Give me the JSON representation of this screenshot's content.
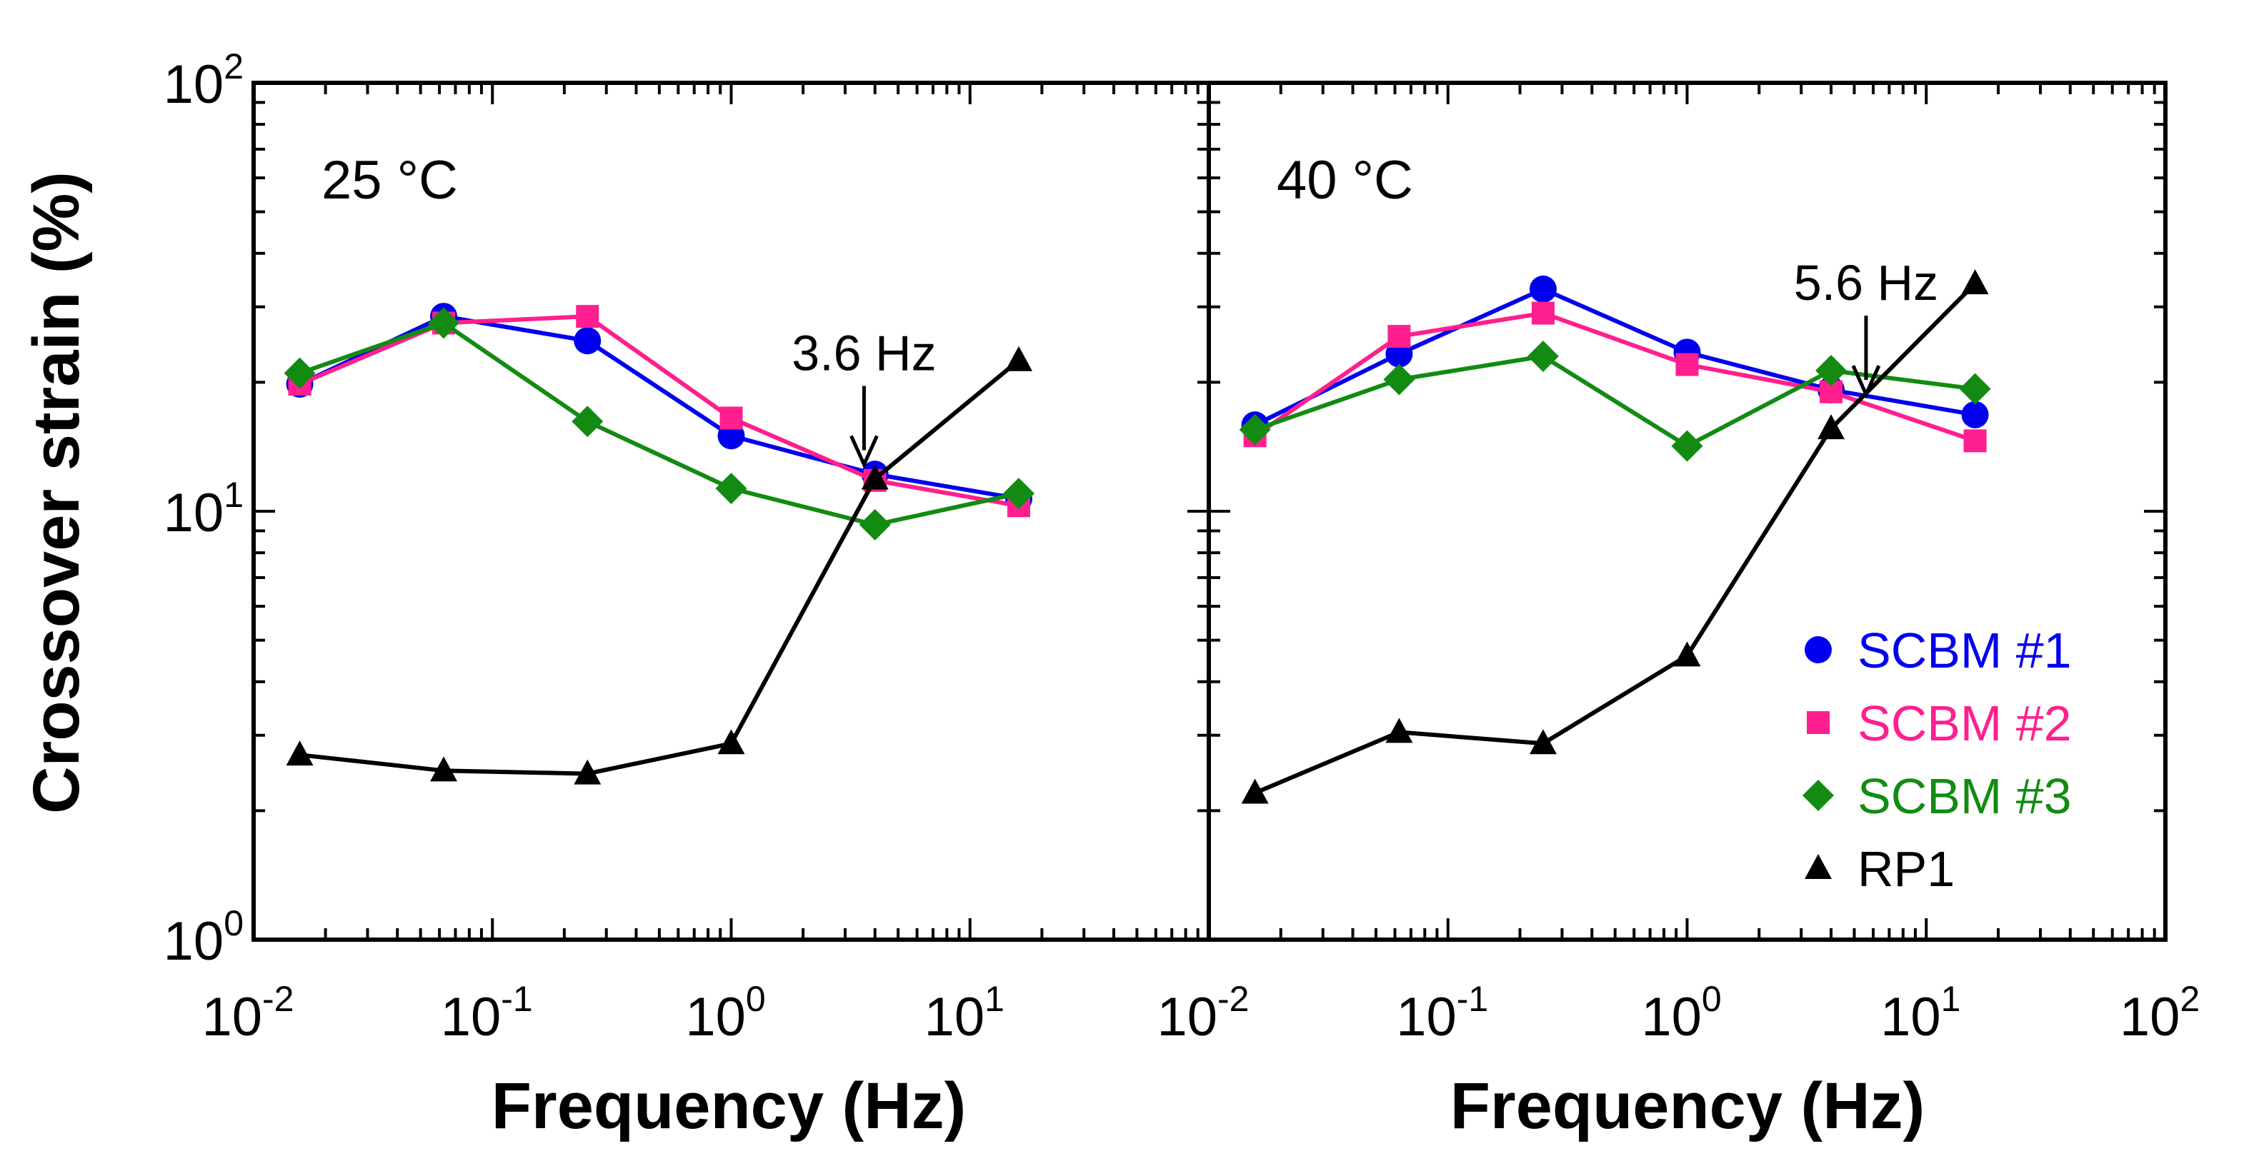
{
  "chart_data": [
    {
      "type": "line",
      "panel": "left",
      "panel_label": "25 °C",
      "xlabel": "Frequency (Hz)",
      "ylabel": "Crossover strain (%)",
      "xscale": "log",
      "yscale": "log",
      "xlim": [
        0.01,
        100
      ],
      "ylim": [
        1,
        100
      ],
      "x_tick_labels": [
        {
          "base": "10",
          "exp": "-2"
        },
        {
          "base": "10",
          "exp": "-1"
        },
        {
          "base": "10",
          "exp": "0"
        },
        {
          "base": "10",
          "exp": "1"
        }
      ],
      "y_tick_labels": [
        {
          "base": "10",
          "exp": "0"
        },
        {
          "base": "10",
          "exp": "1"
        },
        {
          "base": "10",
          "exp": "2"
        }
      ],
      "x": [
        0.0156,
        0.0625,
        0.25,
        1.0,
        4.0,
        16.0
      ],
      "series": [
        {
          "name": "SCBM #1",
          "marker": "circle",
          "color": "#0000ee",
          "values": [
            19.8,
            28.5,
            25.0,
            15.0,
            12.2,
            10.7
          ]
        },
        {
          "name": "SCBM #2",
          "marker": "square",
          "color": "#ff1f8e",
          "values": [
            19.8,
            27.5,
            28.5,
            16.5,
            11.8,
            10.3
          ]
        },
        {
          "name": "SCBM #3",
          "marker": "diamond",
          "color": "#138b13",
          "values": [
            21.0,
            27.5,
            16.2,
            11.3,
            9.3,
            11.0
          ]
        },
        {
          "name": "RP1",
          "marker": "triangle",
          "color": "#000000",
          "values": [
            2.7,
            2.48,
            2.44,
            2.87,
            11.9,
            22.5
          ]
        }
      ],
      "annotations": [
        {
          "text": "3.6 Hz",
          "x": 3.6,
          "y": 12.0
        }
      ]
    },
    {
      "type": "line",
      "panel": "right",
      "panel_label": "40 °C",
      "xlabel": "Frequency (Hz)",
      "xscale": "log",
      "yscale": "log",
      "xlim": [
        0.01,
        100
      ],
      "ylim": [
        1,
        100
      ],
      "x_tick_labels": [
        {
          "base": "10",
          "exp": "-2"
        },
        {
          "base": "10",
          "exp": "-1"
        },
        {
          "base": "10",
          "exp": "0"
        },
        {
          "base": "10",
          "exp": "1"
        },
        {
          "base": "10",
          "exp": "2"
        }
      ],
      "x": [
        0.0156,
        0.0625,
        0.25,
        1.0,
        4.0,
        16.0
      ],
      "series": [
        {
          "name": "SCBM #1",
          "marker": "circle",
          "color": "#0000ee",
          "values": [
            15.9,
            23.3,
            33.0,
            23.5,
            19.2,
            16.8
          ]
        },
        {
          "name": "SCBM #2",
          "marker": "square",
          "color": "#ff1f8e",
          "values": [
            15.0,
            25.6,
            29.0,
            22.0,
            19.0,
            14.6
          ]
        },
        {
          "name": "SCBM #3",
          "marker": "diamond",
          "color": "#138b13",
          "values": [
            15.5,
            20.3,
            23.0,
            14.2,
            21.3,
            19.3
          ]
        },
        {
          "name": "RP1",
          "marker": "triangle",
          "color": "#000000",
          "values": [
            2.2,
            3.05,
            2.87,
            4.6,
            15.6,
            34.0
          ]
        }
      ],
      "annotations": [
        {
          "text": "5.6 Hz",
          "x": 5.6,
          "y": 17.5
        }
      ]
    }
  ],
  "legend": {
    "placement": "lower-right",
    "entries": [
      {
        "label": "SCBM #1",
        "marker": "circle",
        "color": "#0000ee"
      },
      {
        "label": "SCBM #2",
        "marker": "square",
        "color": "#ff1f8e"
      },
      {
        "label": "SCBM #3",
        "marker": "diamond",
        "color": "#138b13"
      },
      {
        "label": "RP1",
        "marker": "triangle",
        "color": "#000000"
      }
    ]
  }
}
